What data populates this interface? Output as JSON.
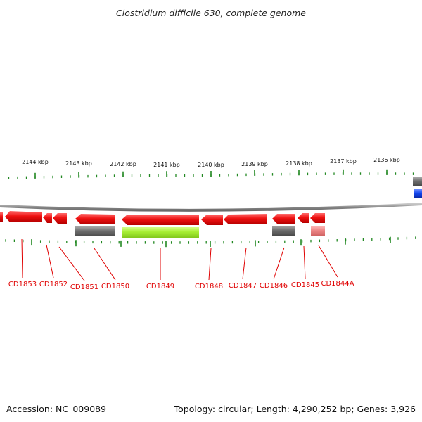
{
  "title": "Clostridium difficile 630, complete genome",
  "footer": {
    "accession": "Accession: NC_009089",
    "stats": "Topology: circular; Length: 4,290,252 bp; Genes: 3,926"
  },
  "colors": {
    "gene_forward": "#ee1111",
    "gene_reverse": "#ee1111",
    "backbone": "#8a8a8a",
    "tick": "#228822",
    "label": "#e00000",
    "cds_gray": "#6f6f6f",
    "cds_green": "#a6ee33",
    "cds_pink": "#ee8888",
    "cds_blue": "#1144ee"
  },
  "kbp_markers": [
    {
      "label": "2144 kbp"
    },
    {
      "label": "2143 kbp"
    },
    {
      "label": "2142 kbp"
    },
    {
      "label": "2141 kbp"
    },
    {
      "label": "2140 kbp"
    },
    {
      "label": "2139 kbp"
    },
    {
      "label": "2138 kbp"
    },
    {
      "label": "2137 kbp"
    },
    {
      "label": "2136 kbp"
    }
  ],
  "genes": [
    {
      "label": "CD1853"
    },
    {
      "label": "CD1852"
    },
    {
      "label": "CD1851"
    },
    {
      "label": "CD1850"
    },
    {
      "label": "CD1849"
    },
    {
      "label": "CD1848"
    },
    {
      "label": "CD1847"
    },
    {
      "label": "CD1846"
    },
    {
      "label": "CD1845"
    },
    {
      "label": "CD1844A"
    }
  ]
}
